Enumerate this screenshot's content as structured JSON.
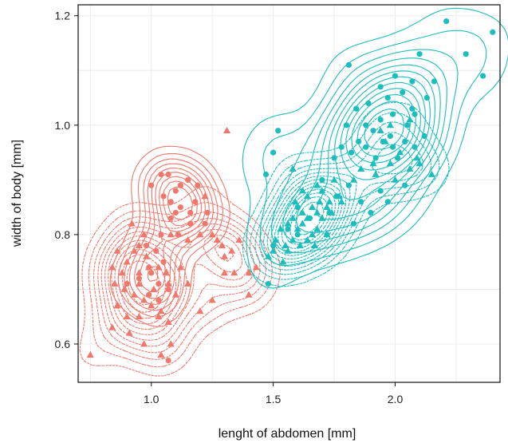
{
  "chart_data": {
    "type": "scatter",
    "title": "",
    "xlabel": "lenght of abdomen [mm]",
    "ylabel": "width of body [mm]",
    "xlim": [
      0.7,
      2.43
    ],
    "ylim": [
      0.53,
      1.22
    ],
    "x_ticks": [
      1.0,
      1.5,
      2.0
    ],
    "y_ticks": [
      0.6,
      0.8,
      1.0,
      1.2
    ],
    "x_tick_labels": [
      "1.0",
      "1.5",
      "2.0"
    ],
    "y_tick_labels": [
      "0.6",
      "0.8",
      "1.0",
      "1.2"
    ],
    "grid": true,
    "legend": "none",
    "colors": {
      "red": "#f0776b",
      "teal": "#1bbdbd"
    },
    "series": [
      {
        "group": "red",
        "marker": "circle",
        "points": [
          [
            1.04,
            0.91
          ],
          [
            1.07,
            0.91
          ],
          [
            1.15,
            0.9
          ],
          [
            1.19,
            0.89
          ],
          [
            1.12,
            0.89
          ],
          [
            1.0,
            0.89
          ],
          [
            1.05,
            0.87
          ],
          [
            1.1,
            0.88
          ],
          [
            1.18,
            0.86
          ],
          [
            1.08,
            0.86
          ],
          [
            1.12,
            0.85
          ],
          [
            1.1,
            0.84
          ],
          [
            1.16,
            0.84
          ],
          [
            1.23,
            0.84
          ],
          [
            1.08,
            0.83
          ],
          [
            1.16,
            0.82
          ],
          [
            1.22,
            0.82
          ],
          [
            1.04,
            0.8
          ],
          [
            1.11,
            0.8
          ],
          [
            0.98,
            0.78
          ],
          [
            1.02,
            0.77
          ],
          [
            1.05,
            0.75
          ],
          [
            0.99,
            0.74
          ],
          [
            1.0,
            0.73
          ],
          [
            0.95,
            0.72
          ],
          [
            1.03,
            0.71
          ],
          [
            1.07,
            0.7
          ],
          [
            0.9,
            0.71
          ],
          [
            0.99,
            0.69
          ],
          [
            1.03,
            0.68
          ],
          [
            1.07,
            0.57
          ]
        ]
      },
      {
        "group": "red",
        "marker": "triangle",
        "points": [
          [
            1.31,
            0.99
          ],
          [
            1.22,
            0.87
          ],
          [
            1.27,
            0.79
          ],
          [
            1.29,
            0.78
          ],
          [
            1.3,
            0.76
          ],
          [
            1.33,
            0.77
          ],
          [
            1.36,
            0.79
          ],
          [
            1.3,
            0.73
          ],
          [
            1.34,
            0.73
          ],
          [
            1.4,
            0.73
          ],
          [
            1.43,
            0.74
          ],
          [
            1.25,
            0.8
          ],
          [
            1.2,
            0.8
          ],
          [
            1.15,
            0.79
          ],
          [
            1.08,
            0.8
          ],
          [
            0.97,
            0.8
          ],
          [
            0.92,
            0.82
          ],
          [
            0.95,
            0.78
          ],
          [
            0.93,
            0.77
          ],
          [
            0.86,
            0.77
          ],
          [
            0.98,
            0.76
          ],
          [
            0.9,
            0.75
          ],
          [
            0.84,
            0.74
          ],
          [
            0.99,
            0.74
          ],
          [
            1.03,
            0.74
          ],
          [
            1.06,
            0.73
          ],
          [
            1.12,
            0.74
          ],
          [
            0.95,
            0.73
          ],
          [
            0.88,
            0.73
          ],
          [
            0.95,
            0.71
          ],
          [
            1.01,
            0.7
          ],
          [
            1.07,
            0.71
          ],
          [
            1.15,
            0.71
          ],
          [
            0.85,
            0.71
          ],
          [
            0.89,
            0.7
          ],
          [
            0.93,
            0.69
          ],
          [
            0.97,
            0.68
          ],
          [
            1.0,
            0.67
          ],
          [
            1.04,
            0.66
          ],
          [
            1.1,
            0.69
          ],
          [
            0.86,
            0.67
          ],
          [
            0.9,
            0.65
          ],
          [
            0.95,
            0.65
          ],
          [
            1.03,
            0.65
          ],
          [
            1.07,
            0.64
          ],
          [
            0.84,
            0.63
          ],
          [
            0.91,
            0.62
          ],
          [
            1.2,
            0.66
          ],
          [
            1.25,
            0.68
          ],
          [
            0.97,
            0.6
          ],
          [
            1.08,
            0.6
          ],
          [
            0.75,
            0.58
          ],
          [
            1.04,
            0.58
          ],
          [
            1.4,
            0.69
          ]
        ]
      },
      {
        "group": "teal",
        "marker": "circle",
        "points": [
          [
            2.21,
            1.19
          ],
          [
            2.4,
            1.17
          ],
          [
            2.1,
            1.13
          ],
          [
            2.29,
            1.13
          ],
          [
            2.36,
            1.09
          ],
          [
            1.81,
            1.11
          ],
          [
            2.0,
            1.09
          ],
          [
            2.16,
            1.08
          ],
          [
            2.07,
            1.08
          ],
          [
            1.94,
            1.07
          ],
          [
            2.03,
            1.06
          ],
          [
            2.13,
            1.05
          ],
          [
            1.97,
            1.05
          ],
          [
            1.89,
            1.04
          ],
          [
            2.07,
            1.03
          ],
          [
            1.84,
            1.03
          ],
          [
            1.99,
            1.02
          ],
          [
            2.08,
            1.02
          ],
          [
            1.94,
            1.01
          ],
          [
            1.88,
            1.0
          ],
          [
            2.05,
            1.0
          ],
          [
            1.8,
            1.0
          ],
          [
            1.91,
            0.99
          ],
          [
            1.98,
            0.98
          ],
          [
            2.12,
            0.98
          ],
          [
            1.85,
            0.97
          ],
          [
            1.95,
            0.97
          ],
          [
            2.04,
            0.97
          ],
          [
            1.78,
            0.96
          ],
          [
            1.88,
            0.96
          ],
          [
            1.99,
            0.96
          ],
          [
            2.08,
            0.96
          ],
          [
            1.82,
            0.95
          ],
          [
            1.92,
            0.94
          ],
          [
            2.01,
            0.94
          ],
          [
            1.75,
            0.94
          ],
          [
            1.52,
            0.99
          ],
          [
            1.5,
            0.95
          ],
          [
            1.47,
            0.91
          ],
          [
            1.7,
            0.9
          ],
          [
            1.81,
            0.89
          ],
          [
            1.94,
            0.88
          ],
          [
            2.04,
            0.89
          ],
          [
            1.76,
            0.87
          ],
          [
            1.86,
            0.86
          ],
          [
            1.97,
            0.86
          ],
          [
            1.6,
            0.85
          ],
          [
            1.73,
            0.84
          ],
          [
            1.9,
            0.84
          ],
          [
            1.65,
            0.83
          ],
          [
            1.83,
            0.82
          ],
          [
            1.56,
            0.81
          ],
          [
            1.72,
            0.8
          ],
          [
            1.6,
            0.8
          ],
          [
            1.5,
            0.78
          ],
          [
            1.48,
            0.71
          ]
        ]
      },
      {
        "group": "teal",
        "marker": "triangle",
        "points": [
          [
            1.98,
            1.0
          ],
          [
            2.06,
            1.01
          ],
          [
            1.94,
            0.99
          ],
          [
            1.96,
            0.97
          ],
          [
            2.02,
            0.95
          ],
          [
            2.09,
            0.94
          ],
          [
            1.91,
            0.93
          ],
          [
            1.98,
            0.93
          ],
          [
            2.06,
            0.92
          ],
          [
            1.86,
            0.92
          ],
          [
            1.92,
            0.91
          ],
          [
            2.0,
            0.9
          ],
          [
            1.75,
            0.9
          ],
          [
            1.83,
            0.9
          ],
          [
            1.68,
            0.89
          ],
          [
            1.62,
            0.88
          ],
          [
            1.7,
            0.88
          ],
          [
            1.77,
            0.87
          ],
          [
            1.64,
            0.87
          ],
          [
            1.69,
            0.86
          ],
          [
            1.73,
            0.86
          ],
          [
            1.59,
            0.86
          ],
          [
            1.66,
            0.85
          ],
          [
            1.72,
            0.85
          ],
          [
            1.78,
            0.86
          ],
          [
            1.62,
            0.84
          ],
          [
            1.68,
            0.84
          ],
          [
            1.74,
            0.84
          ],
          [
            1.58,
            0.83
          ],
          [
            1.64,
            0.83
          ],
          [
            1.7,
            0.83
          ],
          [
            1.56,
            0.82
          ],
          [
            1.62,
            0.82
          ],
          [
            1.68,
            0.81
          ],
          [
            1.53,
            0.81
          ],
          [
            1.6,
            0.81
          ],
          [
            1.66,
            0.8
          ],
          [
            1.72,
            0.8
          ],
          [
            1.51,
            0.79
          ],
          [
            1.58,
            0.79
          ],
          [
            1.64,
            0.79
          ],
          [
            1.55,
            0.78
          ],
          [
            1.61,
            0.78
          ],
          [
            1.67,
            0.78
          ],
          [
            1.5,
            0.77
          ],
          [
            1.56,
            0.77
          ],
          [
            1.48,
            0.76
          ],
          [
            1.54,
            0.75
          ],
          [
            2.1,
            0.93
          ],
          [
            2.15,
            0.91
          ],
          [
            1.58,
            0.92
          ]
        ]
      }
    ]
  }
}
